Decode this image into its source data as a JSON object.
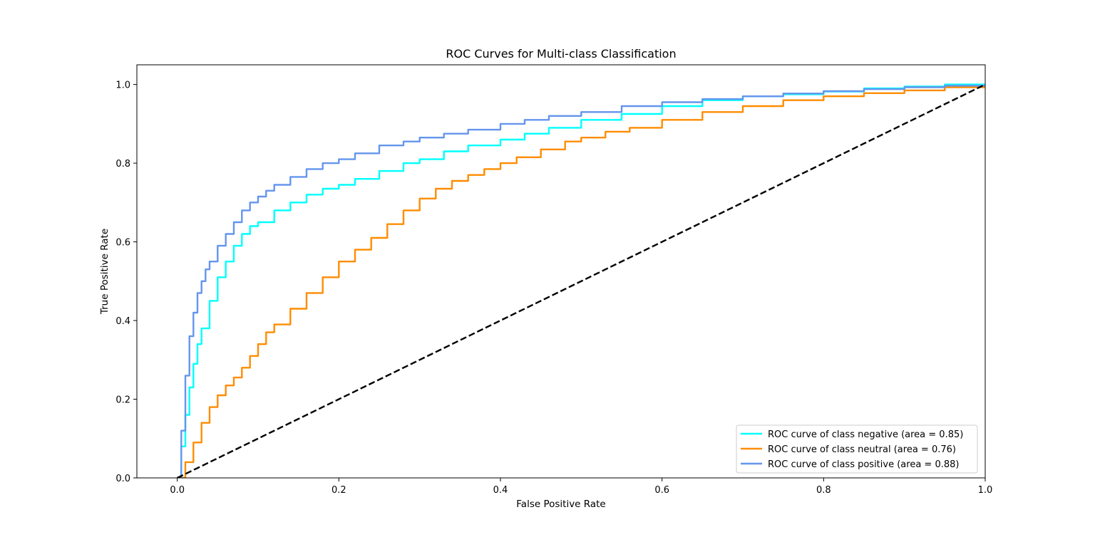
{
  "chart_data": {
    "type": "line",
    "title": "ROC Curves for Multi-class Classification",
    "xlabel": "False Positive Rate",
    "ylabel": "True Positive Rate",
    "xlim": [
      -0.05,
      1.0
    ],
    "ylim": [
      0.0,
      1.05
    ],
    "xticks": [
      0.0,
      0.2,
      0.4,
      0.6,
      0.8,
      1.0
    ],
    "xtick_labels": [
      "0.0",
      "0.2",
      "0.4",
      "0.6",
      "0.8",
      "1.0"
    ],
    "yticks": [
      0.0,
      0.2,
      0.4,
      0.6,
      0.8,
      1.0
    ],
    "ytick_labels": [
      "0.0",
      "0.2",
      "0.4",
      "0.6",
      "0.8",
      "1.0"
    ],
    "grid": false,
    "legend_position": "lower right",
    "series": [
      {
        "name": "ROC curve of class negative (area = 0.85)",
        "color": "#00ffff",
        "x": [
          0,
          0.005,
          0.01,
          0.015,
          0.02,
          0.025,
          0.03,
          0.04,
          0.05,
          0.06,
          0.07,
          0.08,
          0.09,
          0.1,
          0.12,
          0.14,
          0.16,
          0.18,
          0.2,
          0.22,
          0.25,
          0.28,
          0.3,
          0.33,
          0.36,
          0.4,
          0.43,
          0.46,
          0.5,
          0.55,
          0.6,
          0.65,
          0.7,
          0.75,
          0.8,
          0.85,
          0.9,
          0.95,
          1.0
        ],
        "y": [
          0,
          0.08,
          0.16,
          0.23,
          0.29,
          0.34,
          0.38,
          0.45,
          0.51,
          0.55,
          0.59,
          0.62,
          0.64,
          0.65,
          0.68,
          0.7,
          0.72,
          0.735,
          0.745,
          0.76,
          0.78,
          0.8,
          0.81,
          0.83,
          0.845,
          0.86,
          0.875,
          0.89,
          0.91,
          0.925,
          0.945,
          0.96,
          0.97,
          0.975,
          0.982,
          0.99,
          0.995,
          1.0,
          1.0
        ]
      },
      {
        "name": "ROC curve of class neutral (area = 0.76)",
        "color": "#ff8c00",
        "x": [
          0,
          0.01,
          0.02,
          0.03,
          0.04,
          0.05,
          0.06,
          0.07,
          0.08,
          0.09,
          0.1,
          0.11,
          0.12,
          0.14,
          0.16,
          0.18,
          0.2,
          0.22,
          0.24,
          0.26,
          0.28,
          0.3,
          0.32,
          0.34,
          0.36,
          0.38,
          0.4,
          0.42,
          0.45,
          0.48,
          0.5,
          0.53,
          0.56,
          0.6,
          0.65,
          0.7,
          0.75,
          0.8,
          0.85,
          0.9,
          0.95,
          1.0
        ],
        "y": [
          0,
          0.04,
          0.09,
          0.14,
          0.18,
          0.21,
          0.235,
          0.255,
          0.28,
          0.31,
          0.34,
          0.37,
          0.39,
          0.43,
          0.47,
          0.51,
          0.55,
          0.58,
          0.61,
          0.645,
          0.68,
          0.71,
          0.735,
          0.755,
          0.77,
          0.785,
          0.8,
          0.815,
          0.835,
          0.855,
          0.865,
          0.88,
          0.89,
          0.91,
          0.93,
          0.945,
          0.96,
          0.97,
          0.978,
          0.985,
          0.993,
          1.0
        ]
      },
      {
        "name": "ROC curve of class positive (area = 0.88)",
        "color": "#6495ed",
        "x": [
          0,
          0.005,
          0.01,
          0.015,
          0.02,
          0.025,
          0.03,
          0.035,
          0.04,
          0.05,
          0.06,
          0.07,
          0.08,
          0.09,
          0.1,
          0.11,
          0.12,
          0.14,
          0.16,
          0.18,
          0.2,
          0.22,
          0.25,
          0.28,
          0.3,
          0.33,
          0.36,
          0.4,
          0.43,
          0.46,
          0.5,
          0.55,
          0.6,
          0.65,
          0.7,
          0.75,
          0.8,
          0.85,
          0.9,
          0.95,
          1.0
        ],
        "y": [
          0,
          0.12,
          0.26,
          0.36,
          0.42,
          0.47,
          0.5,
          0.53,
          0.55,
          0.59,
          0.62,
          0.65,
          0.68,
          0.7,
          0.715,
          0.73,
          0.745,
          0.765,
          0.785,
          0.8,
          0.81,
          0.825,
          0.845,
          0.855,
          0.865,
          0.875,
          0.885,
          0.9,
          0.91,
          0.92,
          0.93,
          0.945,
          0.955,
          0.963,
          0.97,
          0.977,
          0.983,
          0.988,
          0.993,
          0.997,
          1.0
        ]
      }
    ],
    "reference_line": {
      "x": [
        0,
        1
      ],
      "y": [
        0,
        1
      ],
      "color": "#000000",
      "style": "dashed"
    }
  }
}
